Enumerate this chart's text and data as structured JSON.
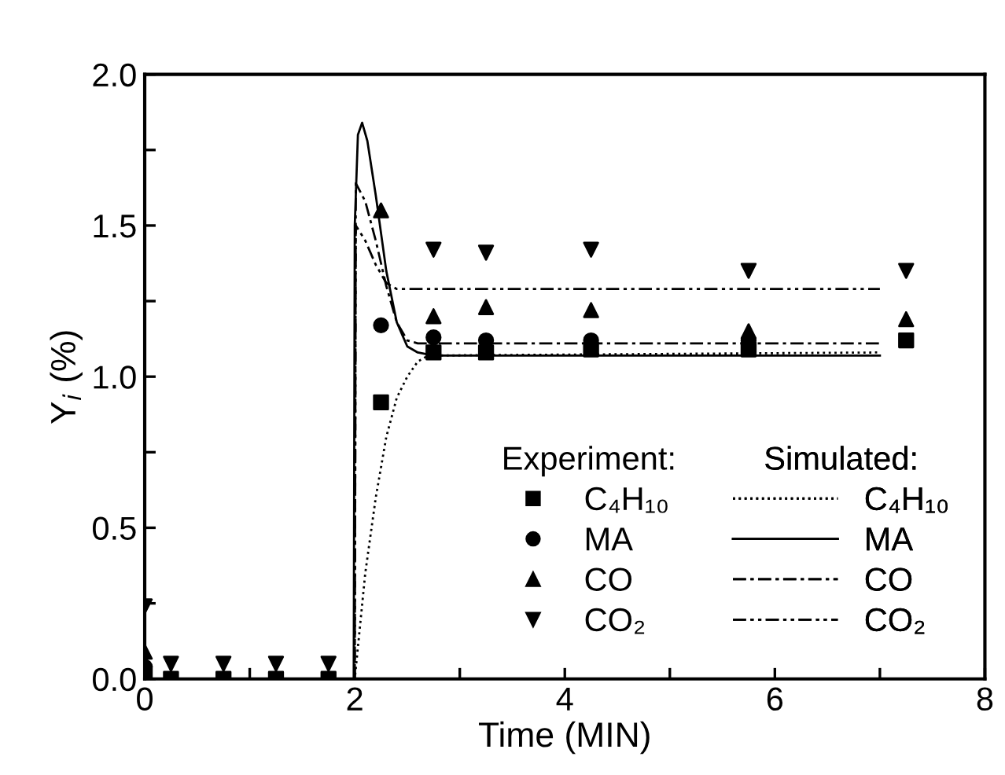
{
  "chart_data": {
    "type": "scatter",
    "xlabel": "Time (MIN)",
    "ylabel": "Y$_{i}$ (%)",
    "xlim": [
      0,
      8
    ],
    "ylim": [
      0,
      2.0
    ],
    "xticks": [
      0,
      {
        "value": 1,
        "label": null
      },
      2,
      {
        "value": 3,
        "label": null
      },
      4,
      {
        "value": 5,
        "label": null
      },
      6,
      {
        "value": 7,
        "label": null
      },
      8
    ],
    "yticks": [
      {
        "value": 0,
        "label": "0.0"
      },
      {
        "value": 0.25,
        "label": null
      },
      0.5,
      {
        "value": 0.75,
        "label": null
      },
      {
        "value": 1.0,
        "label": "1.0"
      },
      {
        "value": 1.25,
        "label": null
      },
      1.5,
      {
        "value": 1.75,
        "label": null
      },
      {
        "value": 2.0,
        "label": "2.0"
      }
    ],
    "grid": false,
    "legend": "bottom right",
    "annotations": [
      "Experiment:",
      "Simulated:"
    ],
    "series": [
      {
        "name": "C₄H₁₀",
        "marker": "square",
        "color": "#000000",
        "x": [
          0,
          0.25,
          0.75,
          1.25,
          1.75,
          2.25,
          2.75,
          3.25,
          4.25,
          5.75,
          7.25
        ],
        "values": [
          0.02,
          0,
          0,
          0,
          0,
          0.915,
          1.08,
          1.08,
          1.09,
          1.09,
          1.12
        ]
      },
      {
        "name": "MA",
        "marker": "circle",
        "color": "#000000",
        "x": [
          0,
          0.25,
          0.75,
          1.25,
          1.75,
          2.25,
          2.75,
          3.25,
          4.25,
          5.75
        ],
        "values": [
          0.04,
          null,
          null,
          null,
          null,
          1.17,
          1.13,
          1.12,
          1.12,
          1.12
        ]
      },
      {
        "name": "CO",
        "marker": "triangle",
        "color": "#000000",
        "x": [
          0,
          0.25,
          0.75,
          1.25,
          1.75,
          2.25,
          2.75,
          3.25,
          4.25,
          5.75,
          7.25
        ],
        "values": [
          0.09,
          null,
          null,
          null,
          null,
          1.55,
          1.2,
          1.23,
          1.22,
          1.15,
          1.19
        ]
      },
      {
        "name": "CO₂",
        "marker": "triangle_down",
        "color": "#000000",
        "x": [
          0,
          0.25,
          0.75,
          1.25,
          1.75,
          2.75,
          3.25,
          4.25,
          5.75,
          7.25
        ],
        "values": [
          0.24,
          0.05,
          0.05,
          0.05,
          0.05,
          1.42,
          1.41,
          1.42,
          1.35,
          1.35
        ]
      },
      {
        "name": "C₄H₁₀",
        "type": "line",
        "line_style": "dotted",
        "color": "#000000",
        "x": [
          0,
          2.0,
          2.1,
          2.2,
          2.3,
          2.4,
          2.5,
          2.6,
          2.7,
          7
        ],
        "values": [
          0,
          0,
          0.35,
          0.6,
          0.8,
          0.93,
          1.0,
          1.05,
          1.07,
          1.08
        ]
      },
      {
        "name": "MA",
        "type": "line",
        "line_style": "solid",
        "color": "#000000",
        "x": [
          0,
          1.99,
          2.0,
          2.03,
          2.07,
          2.12,
          2.2,
          2.3,
          2.4,
          2.5,
          2.6,
          2.75,
          7
        ],
        "values": [
          0,
          0,
          1.5,
          1.8,
          1.84,
          1.78,
          1.6,
          1.35,
          1.18,
          1.1,
          1.08,
          1.07,
          1.07
        ]
      },
      {
        "name": "CO",
        "type": "line",
        "line_style": "dashdot",
        "color": "#000000",
        "x": [
          0,
          2.0,
          2.01,
          2.1,
          2.2,
          2.3,
          2.4,
          2.5,
          2.6,
          7
        ],
        "values": [
          0,
          0,
          1.64,
          1.58,
          1.45,
          1.3,
          1.18,
          1.12,
          1.11,
          1.11
        ]
      },
      {
        "name": "CO₂",
        "type": "line",
        "line_style": "dashdotdot",
        "color": "#000000",
        "x": [
          0,
          2.0,
          2.01,
          2.1,
          2.2,
          2.3,
          2.4,
          2.5,
          7
        ],
        "values": [
          0,
          0,
          1.5,
          1.45,
          1.37,
          1.31,
          1.29,
          1.29,
          1.29
        ]
      }
    ]
  }
}
